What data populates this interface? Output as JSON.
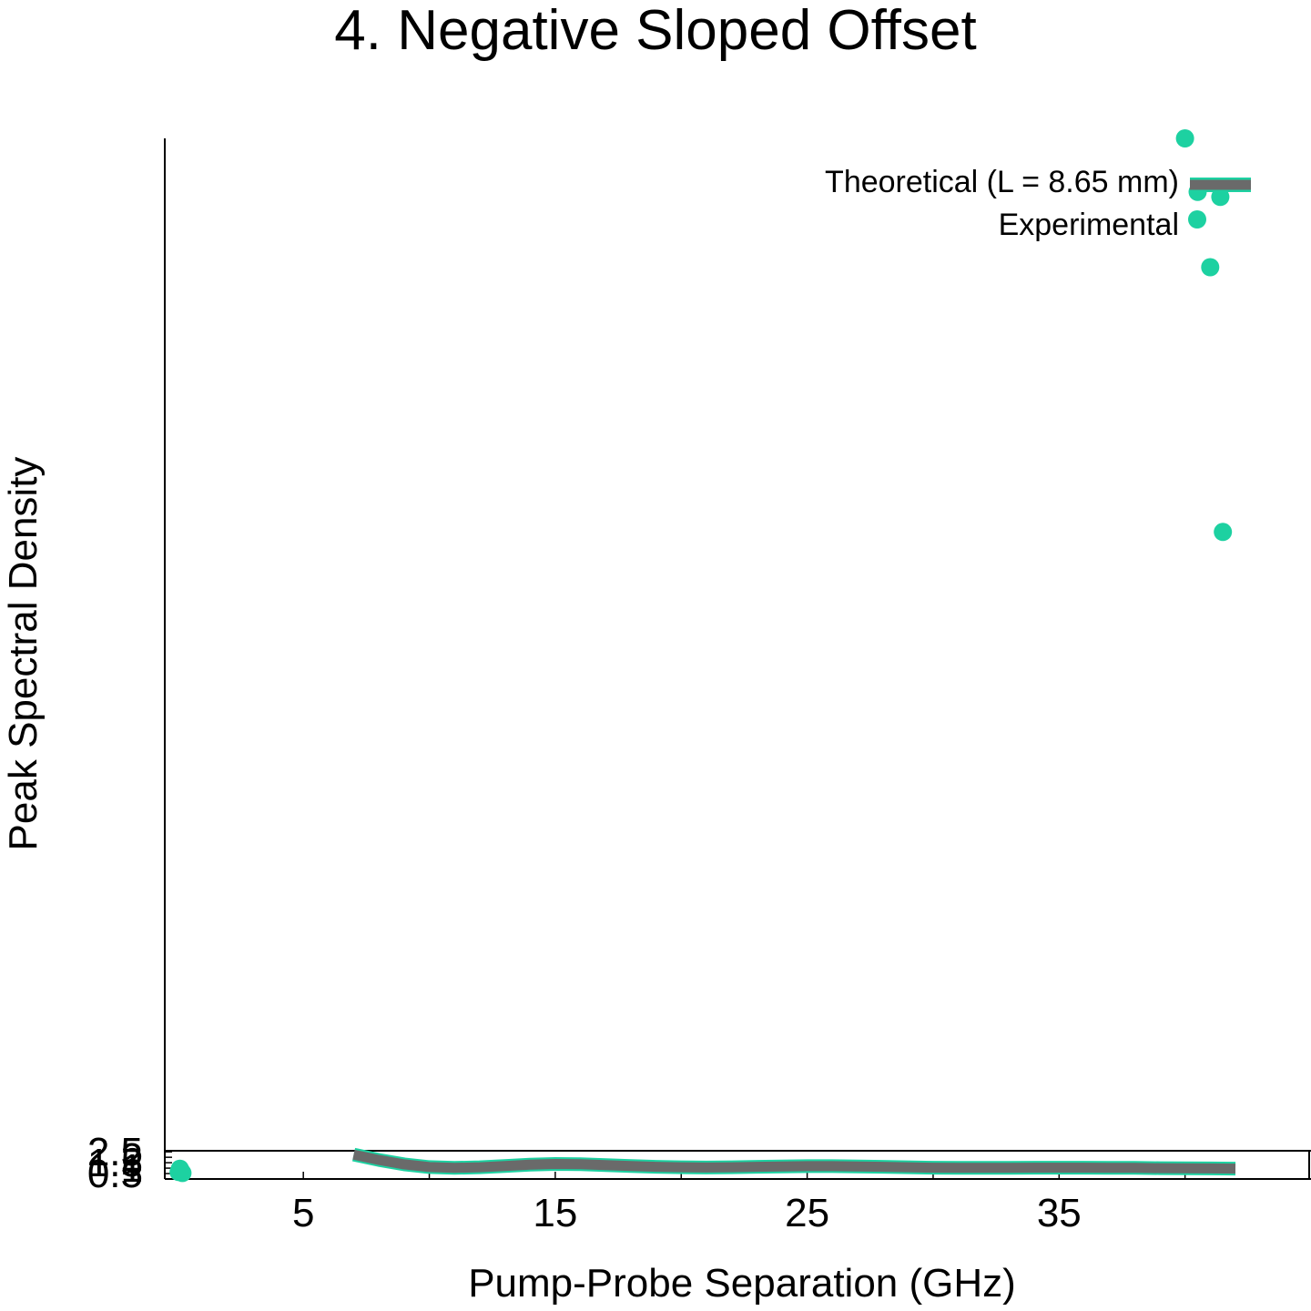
{
  "chart_data": {
    "type": "line",
    "title": "4. Negative Sloped Offset",
    "xlabel": "Pump-Probe Separation (GHz)",
    "ylabel": "Peak Spectral Density",
    "xlim": [
      -0.5,
      45
    ],
    "ylim": [
      0,
      2.6
    ],
    "x_ticks": [
      5,
      15,
      25,
      35
    ],
    "y_ticks": [
      0.5,
      1,
      1.5,
      2,
      2.5
    ],
    "y_tick_labels": [
      "0.5",
      "1",
      "1.5",
      "2",
      "2.5"
    ],
    "grid": false,
    "legend": "top-right",
    "series": [
      {
        "name": "Theoretical (L = 8.65 mm)",
        "kind": "line",
        "color": "#6a6a6a",
        "x": [
          7,
          8,
          9,
          10,
          11,
          12,
          13,
          14,
          15,
          16,
          17,
          18,
          19,
          20,
          21,
          22,
          23,
          24,
          25,
          26,
          27,
          28,
          29,
          30,
          31,
          32,
          33,
          34,
          35,
          36,
          37,
          38,
          39,
          40,
          41,
          42
        ],
        "y": [
          2.25,
          1.75,
          1.35,
          1.1,
          1.02,
          1.08,
          1.2,
          1.32,
          1.38,
          1.36,
          1.28,
          1.2,
          1.12,
          1.08,
          1.06,
          1.08,
          1.12,
          1.16,
          1.18,
          1.18,
          1.16,
          1.12,
          1.08,
          1.04,
          1.02,
          1.02,
          1.03,
          1.04,
          1.04,
          1.04,
          1.03,
          1.02,
          1.0,
          0.98,
          0.97,
          0.96
        ]
      },
      {
        "name": "Experimental",
        "kind": "scatter",
        "color": "#1dd1a1",
        "x": [
          0.05,
          0.1,
          0.15,
          0.2,
          0.1
        ],
        "y": [
          0.65,
          0.85,
          0.72,
          0.55,
          0.95
        ]
      },
      {
        "name": "",
        "kind": "scatter",
        "color": "#1dd1a1",
        "x": [
          40,
          40.5,
          41,
          41.5,
          41.4
        ],
        "y": [
          2000,
          1820,
          1594,
          1000,
          1804
        ]
      }
    ],
    "bottom_tick_marks_x": [
      10,
      20,
      30,
      40
    ]
  }
}
